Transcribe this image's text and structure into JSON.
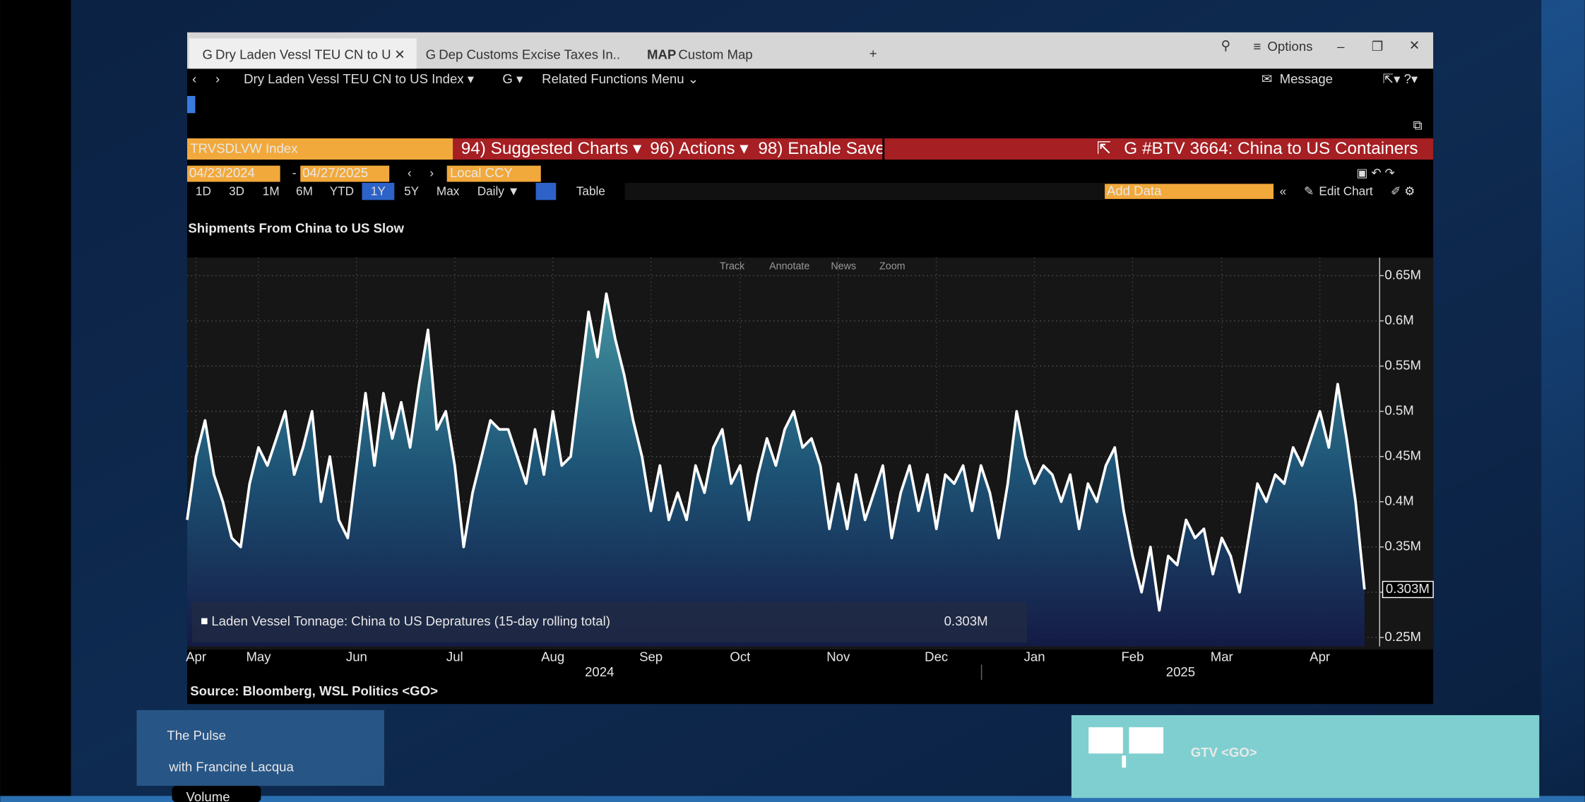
{
  "ui": {
    "tabs": [
      {
        "prefix": "G",
        "label": "Dry Laden Vessl TEU CN to U"
      },
      {
        "prefix": "G",
        "label": "Dep Customs Excise Taxes In.."
      },
      {
        "prefix": "MAP",
        "label": "Custom Map"
      }
    ],
    "options": "Options",
    "nav": [
      "Dry Laden Vessl TEU CN to US Index ▾",
      "G ▾",
      "Related Functions Menu ⌄"
    ],
    "message": "Message",
    "ticker": "TRVSDLVW Index",
    "menus": [
      "94) Suggested Charts ▾",
      "96) Actions ▾",
      "98) Enable Save"
    ],
    "related": "G #BTV 3664: China to US Containers",
    "start_date": "04/23/2024",
    "end_date": "04/27/2025",
    "currency": "Local CCY",
    "periods": [
      "1D",
      "3D",
      "1M",
      "6M",
      "YTD",
      "1Y",
      "5Y",
      "Max",
      "Daily ▼"
    ],
    "table": "Table",
    "add_data": "Add Data",
    "edit_chart": "Edit Chart",
    "chart_tools": [
      "Track",
      "Annotate",
      "News",
      "Zoom"
    ],
    "source": "Source: Bloomberg, WSL Politics <GO>",
    "show_title": "The Pulse",
    "show_host": "with Francine Lacqua",
    "gtv": "GTV <GO>",
    "volume": "Volume"
  },
  "chart_data": {
    "type": "area",
    "title": "Shipments From China to US Slow",
    "categories": [
      null,
      "Apr",
      null,
      null,
      null,
      null,
      null,
      null,
      "May",
      null,
      null,
      null,
      null,
      null,
      null,
      null,
      null,
      null,
      null,
      "Jun",
      null,
      null,
      null,
      null,
      null,
      null,
      null,
      null,
      null,
      null,
      "Jul",
      null,
      null,
      null,
      null,
      null,
      null,
      null,
      null,
      null,
      null,
      "Aug",
      null,
      null,
      null,
      null,
      null,
      null,
      null,
      null,
      null,
      null,
      "Sep",
      null,
      null,
      null,
      null,
      null,
      null,
      null,
      null,
      null,
      "Oct",
      null,
      null,
      null,
      null,
      null,
      null,
      null,
      null,
      null,
      null,
      "Nov",
      null,
      null,
      null,
      null,
      null,
      null,
      null,
      null,
      null,
      null,
      "Dec",
      null,
      null,
      null,
      null,
      null,
      null,
      null,
      null,
      null,
      null,
      "Jan",
      null,
      null,
      null,
      null,
      null,
      null,
      null,
      null,
      null,
      null,
      "Feb",
      null,
      null,
      null,
      null,
      null,
      null,
      null,
      null,
      null,
      "Mar",
      null,
      null,
      null,
      null,
      null,
      null,
      null,
      null,
      null,
      null,
      "Apr",
      null,
      null,
      null,
      null,
      null
    ],
    "years": [
      "2024",
      "2025"
    ],
    "series": [
      {
        "name": "Laden Vessel Tonnage: China to US Depratures (15-day rolling total)",
        "color": "#ffffff",
        "values": [
          0.38,
          0.45,
          0.49,
          0.43,
          0.4,
          0.36,
          0.35,
          0.42,
          0.46,
          0.44,
          0.47,
          0.5,
          0.43,
          0.46,
          0.5,
          0.4,
          0.45,
          0.38,
          0.36,
          0.44,
          0.52,
          0.44,
          0.52,
          0.47,
          0.51,
          0.46,
          0.53,
          0.59,
          0.48,
          0.5,
          0.44,
          0.35,
          0.41,
          0.45,
          0.49,
          0.48,
          0.48,
          0.45,
          0.42,
          0.48,
          0.43,
          0.5,
          0.44,
          0.45,
          0.53,
          0.61,
          0.56,
          0.63,
          0.58,
          0.54,
          0.49,
          0.45,
          0.39,
          0.44,
          0.38,
          0.41,
          0.38,
          0.44,
          0.41,
          0.46,
          0.48,
          0.42,
          0.44,
          0.38,
          0.43,
          0.47,
          0.44,
          0.48,
          0.5,
          0.46,
          0.47,
          0.44,
          0.37,
          0.42,
          0.37,
          0.43,
          0.38,
          0.41,
          0.44,
          0.36,
          0.41,
          0.44,
          0.39,
          0.43,
          0.37,
          0.43,
          0.42,
          0.44,
          0.39,
          0.44,
          0.41,
          0.36,
          0.42,
          0.5,
          0.45,
          0.42,
          0.44,
          0.43,
          0.4,
          0.43,
          0.37,
          0.42,
          0.4,
          0.44,
          0.46,
          0.39,
          0.34,
          0.3,
          0.35,
          0.28,
          0.34,
          0.33,
          0.38,
          0.36,
          0.37,
          0.32,
          0.36,
          0.34,
          0.3,
          0.36,
          0.42,
          0.4,
          0.43,
          0.42,
          0.46,
          0.44,
          0.47,
          0.5,
          0.46,
          0.53,
          0.47,
          0.4,
          0.303
        ]
      }
    ],
    "last_value": {
      "value": 0.303,
      "label": "0.303M"
    },
    "ylim": [
      0.24,
      0.67
    ],
    "yticks": [
      {
        "value": 0.25,
        "label": "0.25M"
      },
      {
        "value": 0.3,
        "label": "0.3M"
      },
      {
        "value": 0.35,
        "label": "0.35M"
      },
      {
        "value": 0.4,
        "label": "0.4M"
      },
      {
        "value": 0.45,
        "label": "0.45M"
      },
      {
        "value": 0.5,
        "label": "0.5M"
      },
      {
        "value": 0.55,
        "label": "0.55M"
      },
      {
        "value": 0.6,
        "label": "0.6M"
      },
      {
        "value": 0.65,
        "label": "0.65M"
      }
    ],
    "grid": true
  }
}
